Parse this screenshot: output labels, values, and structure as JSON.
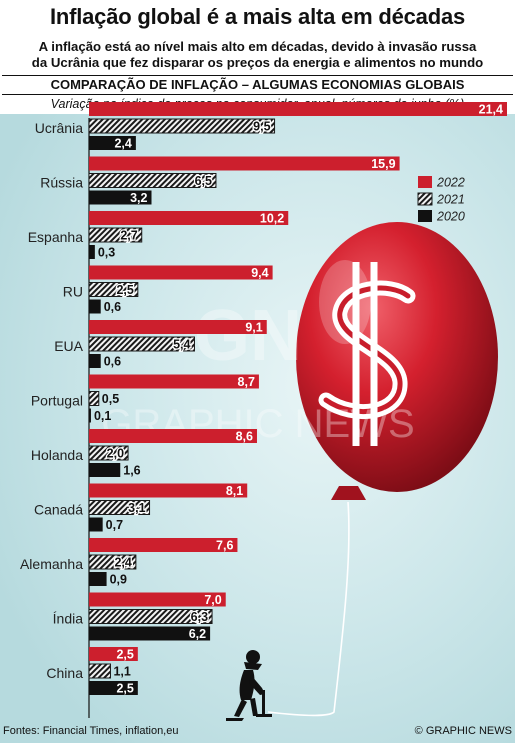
{
  "header": {
    "title": "Inflação global é a mais alta em décadas",
    "subtitle_line1": "A inflação está ao nível mais alto em décadas, devido à invasão russa",
    "subtitle_line2": "da Ucrânia que fez disparar os preços da energia e alimentos no mundo",
    "section_heading": "COMPARAÇÃO DE INFLAÇÃO – ALGUMAS ECONOMIAS GLOBAIS",
    "chart_subtitle": "Variação no índice de preços no consumidor, anual, números de junho (%)"
  },
  "footer": {
    "source": "Fontes: Financial Times, inflation,eu",
    "credit": "© GRAPHIC NEWS"
  },
  "watermark": {
    "logo": "GN",
    "text": "GRAPHIC NEWS"
  },
  "colors": {
    "2022": "#cc1f2d",
    "2021": "#1a1a1a",
    "2020": "#111111",
    "hatch_bg": "#f2f2f2"
  },
  "chart_data": {
    "type": "bar",
    "orientation": "horizontal",
    "title": "COMPARAÇÃO DE INFLAÇÃO – ALGUMAS ECONOMIAS GLOBAIS",
    "subtitle": "Variação no índice de preços no consumidor, anual, números de junho (%)",
    "categories": [
      "Ucrânia",
      "Rússia",
      "Espanha",
      "RU",
      "EUA",
      "Portugal",
      "Holanda",
      "Canadá",
      "Alemanha",
      "Índia",
      "China"
    ],
    "series": [
      {
        "name": "2022",
        "values": [
          21.4,
          15.9,
          10.2,
          9.4,
          9.1,
          8.7,
          8.6,
          8.1,
          7.6,
          7.0,
          2.5
        ],
        "labels": [
          "21,4",
          "15,9",
          "10,2",
          "9,4",
          "9,1",
          "8,7",
          "8,6",
          "8,1",
          "7,6",
          "7,0",
          "2,5"
        ],
        "style": "solid-red"
      },
      {
        "name": "2021",
        "values": [
          9.5,
          6.5,
          2.7,
          2.5,
          5.4,
          0.5,
          2.0,
          3.1,
          2.4,
          6.3,
          1.1
        ],
        "labels": [
          "9,5",
          "6,5",
          "2,7",
          "2,5",
          "5,4",
          "0,5",
          "2,0",
          "3,1",
          "2,4",
          "6,3",
          "1,1"
        ],
        "style": "hatched"
      },
      {
        "name": "2020",
        "values": [
          2.4,
          3.2,
          0.3,
          0.6,
          0.6,
          0.1,
          1.6,
          0.7,
          0.9,
          6.2,
          2.5
        ],
        "labels": [
          "2,4",
          "3,2",
          "0,3",
          "0,6",
          "0,6",
          "0,1",
          "1,6",
          "0,7",
          "0,9",
          "6,2",
          "2,5"
        ],
        "style": "solid-black"
      }
    ],
    "xlim": [
      0,
      21.4
    ],
    "legend": [
      "2022",
      "2021",
      "2020"
    ],
    "legend_position": "right",
    "grid": false
  }
}
